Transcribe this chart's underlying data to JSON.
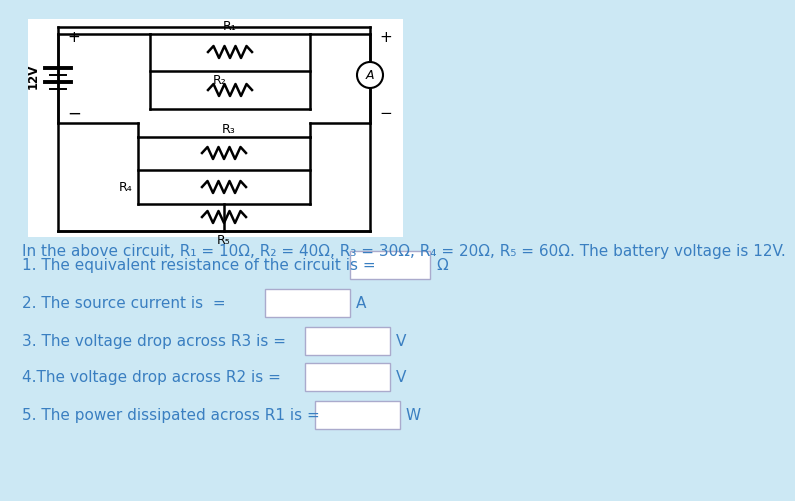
{
  "bg_color": "#cce8f4",
  "circuit_bg": "#ffffff",
  "text_color": "#3a7fc1",
  "title_text": "In the above circuit, R₁ = 10Ω, R₂ = 40Ω, R₃ = 30Ω, R₄ = 20Ω, R₅ = 60Ω. The battery voltage is 12V.",
  "questions": [
    "1. The equivalent resistance of the circuit is =",
    "2. The source current is  =",
    "3. The voltage drop across R3 is =",
    "4.The voltage drop across R2 is =",
    "5. The power dissipated across R1 is ="
  ],
  "units": [
    "Ω",
    "A",
    "V",
    "V",
    "W"
  ],
  "battery_label": "12V",
  "box_x_offsets": [
    340,
    255,
    295,
    295,
    305
  ],
  "box_widths": [
    80,
    85,
    85,
    85,
    85
  ]
}
